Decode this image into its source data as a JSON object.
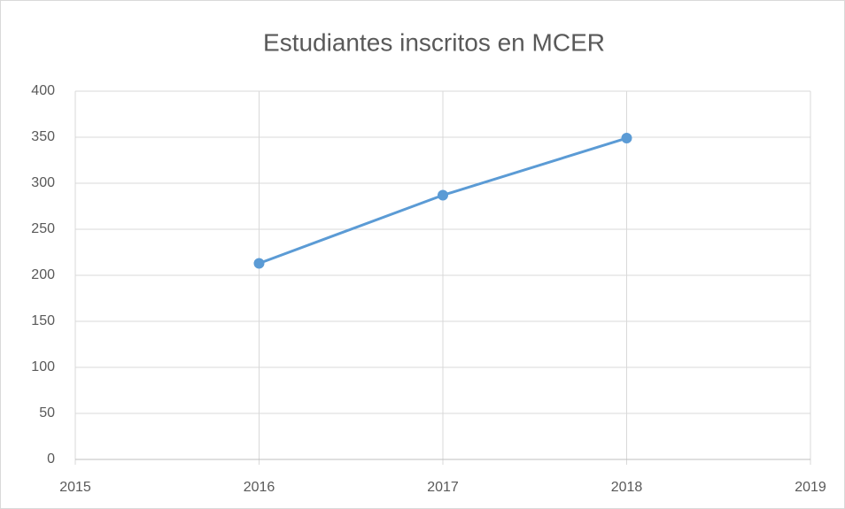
{
  "chart_data": {
    "type": "line",
    "title": "Estudiantes inscritos en MCER",
    "x": [
      2016,
      2017,
      2018
    ],
    "values": [
      213,
      287,
      349
    ],
    "color": "#5b9bd5",
    "xlim": [
      2015,
      2019
    ],
    "xticks": [
      2015,
      2016,
      2017,
      2018,
      2019
    ],
    "ylim": [
      0,
      400
    ],
    "yticks": [
      0,
      50,
      100,
      150,
      200,
      250,
      300,
      350,
      400
    ],
    "grid": true
  }
}
